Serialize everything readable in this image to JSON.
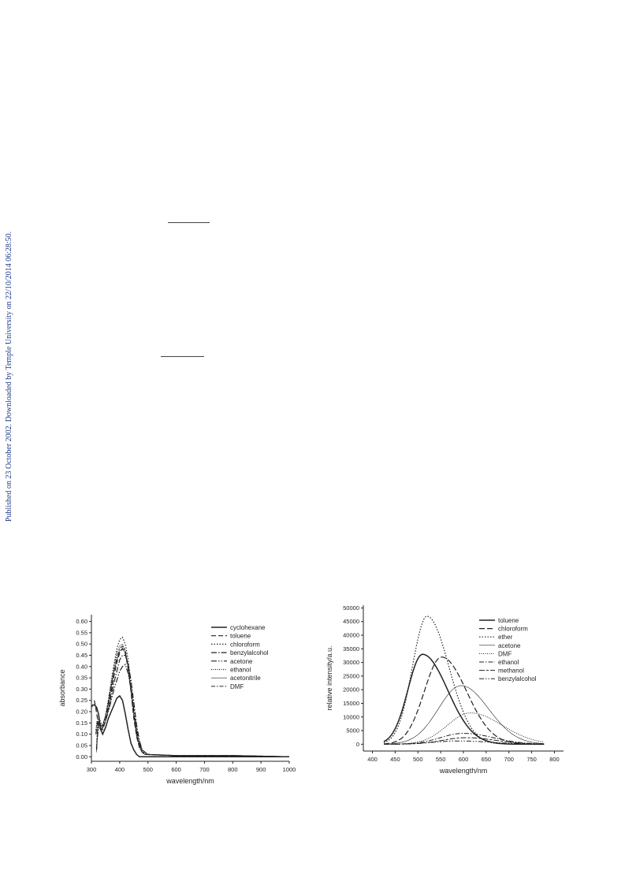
{
  "sidebar_text": "Published on 23 October 2002. Downloaded by Temple University on 22/10/2014 06:28:50.",
  "chart_data": [
    {
      "type": "line",
      "xlabel": "wavelength/nm",
      "ylabel": "absorbance",
      "xlim": [
        300,
        1000
      ],
      "ylim": [
        -0.02,
        0.63
      ],
      "x_ticks": [
        300,
        400,
        500,
        600,
        700,
        800,
        900,
        1000
      ],
      "y_ticks": [
        0.0,
        0.05,
        0.1,
        0.15,
        0.2,
        0.25,
        0.3,
        0.35,
        0.4,
        0.45,
        0.5,
        0.55,
        0.6
      ],
      "legend_position": "top-right",
      "series": [
        {
          "name": "cyclohexane",
          "dash": "",
          "width": 1.5,
          "x": [
            300,
            305,
            310,
            318,
            325,
            333,
            340,
            350,
            360,
            370,
            380,
            390,
            400,
            410,
            420,
            430,
            440,
            450,
            460,
            470,
            480,
            500,
            600,
            800,
            1000
          ],
          "y": [
            0.22,
            0.23,
            0.23,
            0.22,
            0.19,
            0.12,
            0.1,
            0.13,
            0.17,
            0.2,
            0.23,
            0.26,
            0.27,
            0.25,
            0.19,
            0.12,
            0.06,
            0.03,
            0.01,
            0.0,
            0.0,
            0.0,
            0.0,
            0.0,
            0.0
          ]
        },
        {
          "name": "toluene",
          "dash": "6,3",
          "width": 1.2,
          "x": [
            310,
            315,
            320,
            325,
            333,
            340,
            350,
            360,
            370,
            380,
            390,
            400,
            410,
            420,
            430,
            440,
            450,
            460,
            470,
            480,
            490,
            500,
            600,
            800,
            1000
          ],
          "y": [
            0.25,
            0.22,
            0.18,
            0.14,
            0.12,
            0.12,
            0.16,
            0.22,
            0.29,
            0.36,
            0.42,
            0.46,
            0.48,
            0.46,
            0.39,
            0.29,
            0.17,
            0.09,
            0.04,
            0.02,
            0.01,
            0.01,
            0.005,
            0.005,
            0.0
          ]
        },
        {
          "name": "chloroform",
          "dash": "1.5,2",
          "width": 1.2,
          "x": [
            318,
            322,
            326,
            333,
            340,
            350,
            360,
            370,
            380,
            390,
            400,
            410,
            420,
            430,
            440,
            450,
            460,
            470,
            480,
            490,
            500,
            600,
            800,
            1000
          ],
          "y": [
            0.04,
            0.15,
            0.18,
            0.15,
            0.14,
            0.18,
            0.25,
            0.33,
            0.41,
            0.48,
            0.52,
            0.53,
            0.5,
            0.43,
            0.32,
            0.2,
            0.11,
            0.05,
            0.02,
            0.01,
            0.01,
            0.005,
            0.005,
            0.0
          ]
        },
        {
          "name": "benzylalcohol",
          "dash": "7,2,1.5,2",
          "width": 1.2,
          "x": [
            316,
            320,
            326,
            333,
            340,
            350,
            360,
            370,
            380,
            390,
            400,
            410,
            420,
            430,
            440,
            450,
            460,
            470,
            480,
            490,
            500,
            600,
            800,
            1000
          ],
          "y": [
            0.1,
            0.15,
            0.14,
            0.12,
            0.13,
            0.16,
            0.21,
            0.27,
            0.33,
            0.38,
            0.43,
            0.45,
            0.45,
            0.41,
            0.34,
            0.24,
            0.14,
            0.07,
            0.03,
            0.02,
            0.01,
            0.005,
            0.005,
            0.0
          ]
        },
        {
          "name": "acetone",
          "dash": "7,2,1.5,2,1.5,2",
          "width": 1.2,
          "x": [
            318,
            322,
            326,
            333,
            340,
            350,
            360,
            370,
            380,
            390,
            400,
            410,
            420,
            430,
            440,
            450,
            460,
            470,
            480,
            490,
            500,
            600,
            800,
            1000
          ],
          "y": [
            0.03,
            0.1,
            0.13,
            0.12,
            0.13,
            0.16,
            0.2,
            0.25,
            0.3,
            0.34,
            0.38,
            0.4,
            0.41,
            0.37,
            0.3,
            0.21,
            0.12,
            0.06,
            0.03,
            0.01,
            0.01,
            0.005,
            0.005,
            0.0
          ]
        },
        {
          "name": "ethanol",
          "dash": "1,1.5",
          "width": 1.3,
          "x": [
            316,
            320,
            326,
            333,
            340,
            350,
            360,
            370,
            380,
            390,
            400,
            410,
            420,
            430,
            440,
            450,
            460,
            470,
            480,
            490,
            500,
            600,
            800,
            1000
          ],
          "y": [
            0.12,
            0.16,
            0.15,
            0.13,
            0.14,
            0.18,
            0.25,
            0.33,
            0.4,
            0.46,
            0.49,
            0.5,
            0.47,
            0.4,
            0.29,
            0.18,
            0.09,
            0.04,
            0.02,
            0.01,
            0.01,
            0.005,
            0.005,
            0.0
          ]
        },
        {
          "name": "acetonitrile",
          "dash": "",
          "width": 0.6,
          "x": [
            318,
            322,
            326,
            333,
            340,
            350,
            360,
            370,
            380,
            390,
            400,
            410,
            420,
            430,
            440,
            450,
            460,
            470,
            480,
            490,
            500,
            600,
            800,
            1000
          ],
          "y": [
            0.02,
            0.12,
            0.15,
            0.13,
            0.14,
            0.18,
            0.24,
            0.31,
            0.38,
            0.43,
            0.47,
            0.48,
            0.46,
            0.4,
            0.3,
            0.19,
            0.1,
            0.05,
            0.02,
            0.01,
            0.01,
            0.005,
            0.005,
            0.0
          ]
        },
        {
          "name": "DMF",
          "dash": "5,2,1.5,2",
          "width": 1.0,
          "x": [
            318,
            322,
            326,
            333,
            340,
            350,
            360,
            370,
            380,
            390,
            400,
            410,
            420,
            430,
            440,
            450,
            460,
            470,
            480,
            490,
            500,
            600,
            800,
            1000
          ],
          "y": [
            0.03,
            0.13,
            0.16,
            0.14,
            0.14,
            0.18,
            0.24,
            0.31,
            0.38,
            0.44,
            0.48,
            0.49,
            0.47,
            0.4,
            0.3,
            0.19,
            0.1,
            0.05,
            0.02,
            0.01,
            0.01,
            0.005,
            0.005,
            0.0
          ]
        }
      ]
    },
    {
      "type": "line",
      "xlabel": "wavelength/nm",
      "ylabel": "relative intensity/a.u.",
      "xlim": [
        380,
        820
      ],
      "ylim": [
        -2500,
        51000
      ],
      "x_ticks": [
        400,
        450,
        500,
        550,
        600,
        650,
        700,
        750,
        800
      ],
      "y_ticks": [
        0,
        5000,
        10000,
        15000,
        20000,
        25000,
        30000,
        35000,
        40000,
        45000,
        50000
      ],
      "legend_position": "top-right",
      "series": [
        {
          "name": "toluene",
          "dash": "",
          "width": 1.5,
          "peak": 510,
          "height": 33000,
          "w_left": 32,
          "w_right": 55
        },
        {
          "name": "chloroform",
          "dash": "7,3",
          "width": 1.2,
          "peak": 552,
          "height": 32000,
          "w_left": 38,
          "w_right": 55
        },
        {
          "name": "ether",
          "dash": "1.5,2",
          "width": 1.2,
          "peak": 520,
          "height": 47000,
          "w_left": 32,
          "w_right": 48
        },
        {
          "name": "acetone",
          "dash": "",
          "width": 0.6,
          "peak": 595,
          "height": 21500,
          "w_left": 50,
          "w_right": 60
        },
        {
          "name": "DMF",
          "dash": "1,1.5",
          "width": 1.0,
          "peak": 615,
          "height": 11500,
          "w_left": 50,
          "w_right": 70
        },
        {
          "name": "ethanol",
          "dash": "6,2,1.5,2",
          "width": 1.0,
          "peak": 600,
          "height": 4000,
          "w_left": 50,
          "w_right": 65
        },
        {
          "name": "methanol",
          "dash": "7,2,3,2",
          "width": 1.0,
          "peak": 605,
          "height": 2400,
          "w_left": 50,
          "w_right": 65
        },
        {
          "name": "benzylalcohol",
          "dash": "6,2,1.5,2,1.5,2",
          "width": 1.0,
          "peak": 590,
          "height": 1200,
          "w_left": 55,
          "w_right": 70
        }
      ]
    }
  ]
}
